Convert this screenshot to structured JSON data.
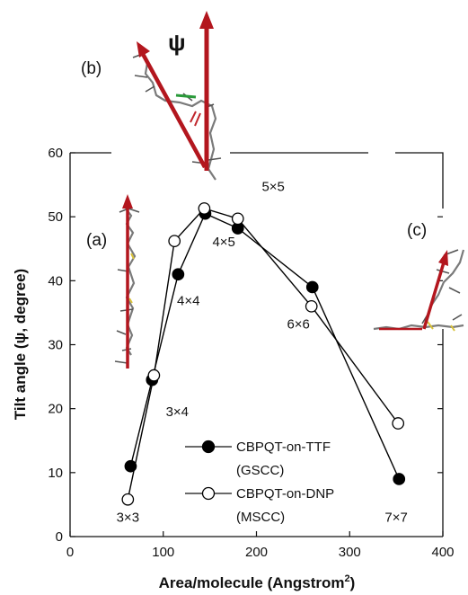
{
  "chart_data": {
    "type": "scatter",
    "xlabel": "Area/molecule (Angstrom",
    "xlabel_sup": "2",
    "xlabel_tail": ")",
    "ylabel": "Tilt angle (ψ, degree)",
    "xlim": [
      0,
      400
    ],
    "ylim": [
      0,
      60
    ],
    "xticks": [
      "0",
      "100",
      "200",
      "300",
      "400"
    ],
    "yticks": [
      "0",
      "10",
      "20",
      "30",
      "40",
      "50",
      "60"
    ],
    "grid": false,
    "legend_position": "lower-left inside plot",
    "series": [
      {
        "name": "CBPQT-on-TTF",
        "name_sub": "(GSCC)",
        "marker": "filled-circle",
        "color": "#000000",
        "x": [
          65,
          88,
          116,
          145,
          180,
          260,
          353
        ],
        "y": [
          11.0,
          24.5,
          41.0,
          50.5,
          48.2,
          39.0,
          9.0
        ]
      },
      {
        "name": "CBPQT-on-DNP",
        "name_sub": "(MSCC)",
        "marker": "open-circle",
        "color": "#000000",
        "x": [
          62,
          90,
          112,
          144,
          180,
          259,
          352
        ],
        "y": [
          5.8,
          25.2,
          46.2,
          51.3,
          49.7,
          36.0,
          17.7
        ]
      }
    ],
    "annotations": [
      {
        "text": "3×3",
        "x": 62,
        "y": 2.3
      },
      {
        "text": "3×4",
        "x": 115,
        "y": 18.8
      },
      {
        "text": "4×4",
        "x": 127,
        "y": 36.2
      },
      {
        "text": "4×5",
        "x": 165,
        "y": 45.4
      },
      {
        "text": "5×5",
        "x": 218,
        "y": 54.0
      },
      {
        "text": "6×6",
        "x": 245,
        "y": 32.5
      },
      {
        "text": "7×7",
        "x": 350,
        "y": 2.3
      }
    ],
    "panel_labels": [
      "(a)",
      "(b)",
      "(c)"
    ],
    "psi_symbol": "ψ",
    "arrow_color": "#b3161e"
  }
}
